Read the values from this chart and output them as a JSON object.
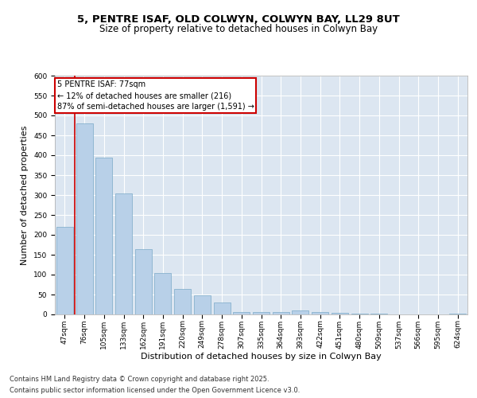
{
  "title_line1": "5, PENTRE ISAF, OLD COLWYN, COLWYN BAY, LL29 8UT",
  "title_line2": "Size of property relative to detached houses in Colwyn Bay",
  "xlabel": "Distribution of detached houses by size in Colwyn Bay",
  "ylabel": "Number of detached properties",
  "categories": [
    "47sqm",
    "76sqm",
    "105sqm",
    "133sqm",
    "162sqm",
    "191sqm",
    "220sqm",
    "249sqm",
    "278sqm",
    "307sqm",
    "335sqm",
    "364sqm",
    "393sqm",
    "422sqm",
    "451sqm",
    "480sqm",
    "509sqm",
    "537sqm",
    "566sqm",
    "595sqm",
    "624sqm"
  ],
  "values": [
    220,
    480,
    395,
    305,
    165,
    105,
    65,
    48,
    30,
    7,
    7,
    7,
    10,
    7,
    5,
    3,
    2,
    1,
    1,
    1,
    2
  ],
  "bar_color": "#b8d0e8",
  "bar_edge_color": "#7aaac8",
  "vline_color": "#cc0000",
  "annotation_text": "5 PENTRE ISAF: 77sqm\n← 12% of detached houses are smaller (216)\n87% of semi-detached houses are larger (1,591) →",
  "annotation_box_color": "#ffffff",
  "annotation_box_edge": "#cc0000",
  "ylim": [
    0,
    600
  ],
  "yticks": [
    0,
    50,
    100,
    150,
    200,
    250,
    300,
    350,
    400,
    450,
    500,
    550,
    600
  ],
  "background_color": "#dce6f1",
  "footnote1": "Contains HM Land Registry data © Crown copyright and database right 2025.",
  "footnote2": "Contains public sector information licensed under the Open Government Licence v3.0.",
  "title_fontsize": 9.5,
  "subtitle_fontsize": 8.5,
  "axis_label_fontsize": 8,
  "tick_fontsize": 6.5,
  "annot_fontsize": 7,
  "footnote_fontsize": 6
}
